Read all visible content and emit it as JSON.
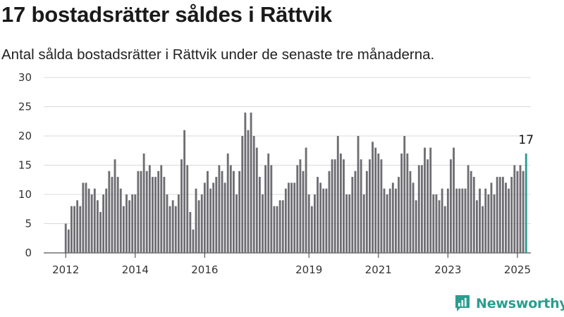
{
  "header": {
    "title": "17 bostadsrätter såldes i Rättvik",
    "subtitle": "Antal sålda bostadsrätter i Rättvik under de senaste tre månaderna."
  },
  "brand": {
    "name": "Newsworthy",
    "icon": "newsworthy-logo-icon",
    "color": "#2a9d8f"
  },
  "chart_data": {
    "type": "bar",
    "title": "17 bostadsrätter såldes i Rättvik",
    "subtitle": "Antal sålda bostadsrätter i Rättvik under de senaste tre månaderna.",
    "xlabel": "",
    "ylabel": "",
    "ylim": [
      0,
      30
    ],
    "yticks": [
      0,
      5,
      10,
      15,
      20,
      25,
      30
    ],
    "grid": true,
    "x_tick_labels": [
      "2012",
      "2014",
      "2016",
      "2019",
      "2021",
      "2023",
      "2025"
    ],
    "x_tick_index": [
      0,
      24,
      48,
      84,
      108,
      132,
      156
    ],
    "bar_color": "#6e6d72",
    "highlight_color": "#2a9d8f",
    "highlight_label": "17",
    "start": "2012-01",
    "values": [
      5,
      4,
      8,
      8,
      9,
      8,
      12,
      12,
      11,
      10,
      11,
      9,
      7,
      10,
      11,
      14,
      13,
      16,
      13,
      11,
      8,
      10,
      9,
      10,
      10,
      14,
      14,
      17,
      14,
      15,
      13,
      13,
      14,
      15,
      13,
      10,
      8,
      9,
      8,
      10,
      16,
      21,
      15,
      7,
      4,
      11,
      9,
      10,
      12,
      14,
      11,
      12,
      13,
      15,
      14,
      12,
      17,
      15,
      14,
      10,
      14,
      20,
      24,
      21,
      24,
      20,
      18,
      13,
      10,
      15,
      17,
      15,
      8,
      8,
      9,
      9,
      11,
      12,
      12,
      12,
      15,
      16,
      14,
      18,
      10,
      8,
      10,
      13,
      12,
      11,
      11,
      14,
      16,
      16,
      20,
      17,
      16,
      10,
      10,
      13,
      14,
      20,
      16,
      10,
      14,
      16,
      19,
      18,
      17,
      16,
      11,
      10,
      11,
      12,
      11,
      13,
      17,
      20,
      17,
      14,
      12,
      9,
      15,
      15,
      18,
      16,
      18,
      10,
      10,
      9,
      11,
      8,
      11,
      16,
      18,
      11,
      11,
      11,
      11,
      15,
      14,
      13,
      9,
      11,
      8,
      11,
      10,
      12,
      10,
      13,
      13,
      13,
      12,
      11,
      13,
      15,
      14,
      15,
      14,
      17
    ]
  }
}
